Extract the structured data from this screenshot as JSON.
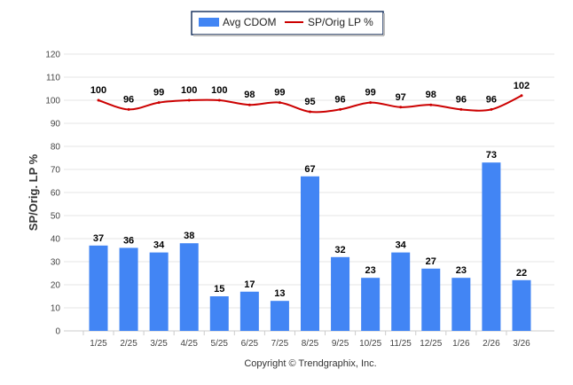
{
  "chart_data": {
    "type": "bar",
    "categories": [
      "1/25",
      "2/25",
      "3/25",
      "4/25",
      "5/25",
      "6/25",
      "7/25",
      "8/25",
      "9/25",
      "10/25",
      "11/25",
      "12/25",
      "1/26",
      "2/26",
      "3/26"
    ],
    "series": [
      {
        "name": "Avg CDOM",
        "type": "bar",
        "color": "#4285f4",
        "values": [
          37,
          36,
          34,
          38,
          15,
          17,
          13,
          67,
          32,
          23,
          34,
          27,
          23,
          73,
          22
        ]
      },
      {
        "name": "SP/Orig LP %",
        "type": "line",
        "color": "#cc0000",
        "values": [
          100,
          96,
          99,
          100,
          100,
          98,
          99,
          95,
          96,
          99,
          97,
          98,
          96,
          96,
          102
        ]
      }
    ],
    "ylabel": "SP/Orig. LP %",
    "xlabel": "",
    "ylim": [
      0,
      120
    ],
    "yticks": [
      0,
      10,
      20,
      30,
      40,
      50,
      60,
      70,
      80,
      90,
      100,
      110,
      120
    ],
    "grid": true,
    "legend": "top-center"
  },
  "footer": {
    "copyright": "Copyright © Trendgraphix, Inc."
  }
}
